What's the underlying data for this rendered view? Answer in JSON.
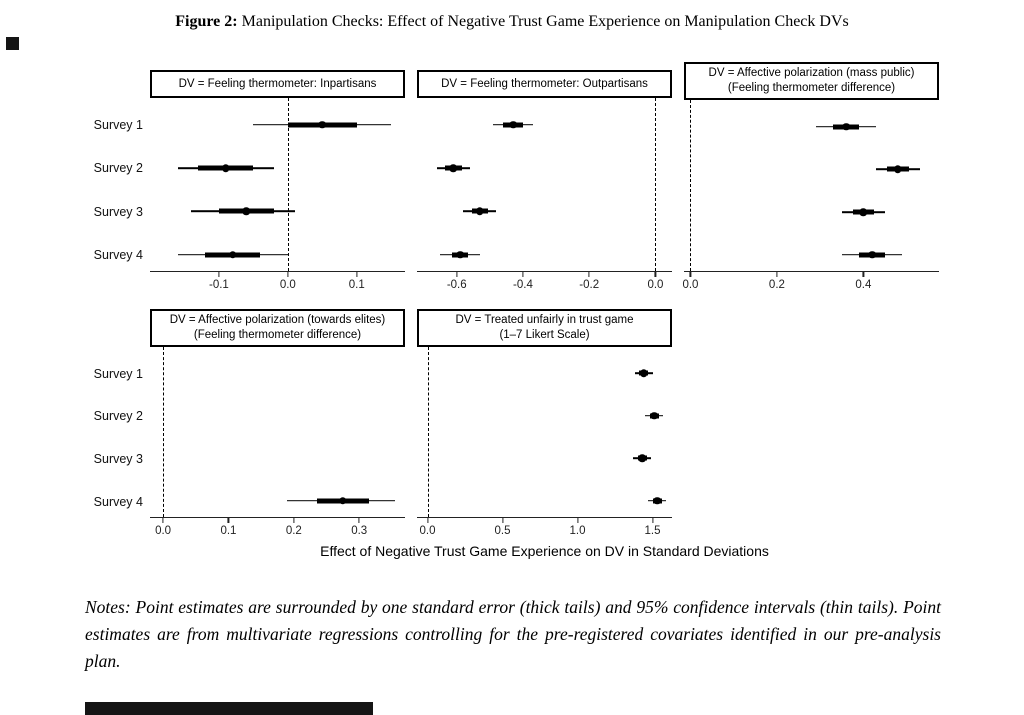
{
  "page": {
    "caption_prefix": "Figure 2:",
    "caption_text": " Manipulation Checks: Effect of Negative Trust Game Experience on Manipulation Check DVs",
    "notes": "Notes: Point estimates are surrounded by one standard error (thick tails) and 95% confidence intervals (thin tails). Point estimates are from multivariate regressions controlling for the pre-registered covariates identified in our pre-analysis plan."
  },
  "chart_data": {
    "type": "scatter",
    "subtype": "forest-plot",
    "title": "Figure 2: Manipulation Checks: Effect of Negative Trust Game Experience on Manipulation Check DVs",
    "xlabel": "Effect of Negative Trust Game Experience on DV in Standard Deviations",
    "y_categories": [
      "Survey 1",
      "Survey 2",
      "Survey 3",
      "Survey 4"
    ],
    "point_marker": "filled-circle",
    "error_bars": {
      "thick": "one standard error",
      "thin": "95% confidence interval"
    },
    "zero_reference_line": "dashed",
    "panels": [
      {
        "id": "ft-inpartisans",
        "title_lines": [
          "DV = Feeling thermometer: Inpartisans"
        ],
        "xlim": [
          -0.2,
          0.17
        ],
        "ticks": [
          -0.1,
          0.0,
          0.1
        ],
        "tick_labels": [
          "-0.1",
          "0.0",
          "0.1"
        ],
        "zero_line": 0.0,
        "estimates": [
          {
            "label": "Survey 1",
            "est": 0.05,
            "se": [
              0.0,
              0.1
            ],
            "ci": [
              -0.05,
              0.15
            ]
          },
          {
            "label": "Survey 2",
            "est": -0.09,
            "se": [
              -0.13,
              -0.05
            ],
            "ci": [
              -0.16,
              -0.02
            ]
          },
          {
            "label": "Survey 3",
            "est": -0.06,
            "se": [
              -0.1,
              -0.02
            ],
            "ci": [
              -0.14,
              0.01
            ]
          },
          {
            "label": "Survey 4",
            "est": -0.08,
            "se": [
              -0.12,
              -0.04
            ],
            "ci": [
              -0.16,
              0.0
            ]
          }
        ]
      },
      {
        "id": "ft-outpartisans",
        "title_lines": [
          "DV = Feeling thermometer: Outpartisans"
        ],
        "xlim": [
          -0.72,
          0.05
        ],
        "ticks": [
          -0.6,
          -0.4,
          -0.2,
          0.0
        ],
        "tick_labels": [
          "-0.6",
          "-0.4",
          "-0.2",
          "0.0"
        ],
        "zero_line": 0.0,
        "estimates": [
          {
            "label": "Survey 1",
            "est": -0.43,
            "se": [
              -0.46,
              -0.4
            ],
            "ci": [
              -0.49,
              -0.37
            ]
          },
          {
            "label": "Survey 2",
            "est": -0.61,
            "se": [
              -0.635,
              -0.585
            ],
            "ci": [
              -0.66,
              -0.56
            ]
          },
          {
            "label": "Survey 3",
            "est": -0.53,
            "se": [
              -0.555,
              -0.505
            ],
            "ci": [
              -0.58,
              -0.48
            ]
          },
          {
            "label": "Survey 4",
            "est": -0.59,
            "se": [
              -0.615,
              -0.565
            ],
            "ci": [
              -0.65,
              -0.53
            ]
          }
        ]
      },
      {
        "id": "affpol-mass-public",
        "title_lines": [
          "DV = Affective polarization (mass public)",
          "(Feeling thermometer difference)"
        ],
        "xlim": [
          -0.015,
          0.575
        ],
        "ticks": [
          0.0,
          0.2,
          0.4
        ],
        "tick_labels": [
          "0.0",
          "0.2",
          "0.4"
        ],
        "zero_line": 0.0,
        "estimates": [
          {
            "label": "Survey 1",
            "est": 0.36,
            "se": [
              0.33,
              0.39
            ],
            "ci": [
              0.29,
              0.43
            ]
          },
          {
            "label": "Survey 2",
            "est": 0.48,
            "se": [
              0.455,
              0.505
            ],
            "ci": [
              0.43,
              0.53
            ]
          },
          {
            "label": "Survey 3",
            "est": 0.4,
            "se": [
              0.375,
              0.425
            ],
            "ci": [
              0.35,
              0.45
            ]
          },
          {
            "label": "Survey 4",
            "est": 0.42,
            "se": [
              0.39,
              0.45
            ],
            "ci": [
              0.35,
              0.49
            ]
          }
        ]
      },
      {
        "id": "affpol-elites",
        "title_lines": [
          "DV = Affective polarization (towards elites)",
          "(Feeling thermometer difference)"
        ],
        "xlim": [
          -0.02,
          0.37
        ],
        "ticks": [
          0.0,
          0.1,
          0.2,
          0.3
        ],
        "tick_labels": [
          "0.0",
          "0.1",
          "0.2",
          "0.3"
        ],
        "zero_line": 0.0,
        "estimates": [
          {
            "label": "Survey 4",
            "est": 0.275,
            "se": [
              0.235,
              0.315
            ],
            "ci": [
              0.19,
              0.355
            ]
          }
        ]
      },
      {
        "id": "treated-unfairly",
        "title_lines": [
          "DV = Treated unfairly in trust game",
          "(1–7 Likert Scale)"
        ],
        "xlim": [
          -0.07,
          1.63
        ],
        "ticks": [
          0.0,
          0.5,
          1.0,
          1.5
        ],
        "tick_labels": [
          "0.0",
          "0.5",
          "1.0",
          "1.5"
        ],
        "zero_line": 0.0,
        "estimates": [
          {
            "label": "Survey 1",
            "est": 1.44,
            "se": [
              1.41,
              1.47
            ],
            "ci": [
              1.38,
              1.5
            ]
          },
          {
            "label": "Survey 2",
            "est": 1.51,
            "se": [
              1.48,
              1.54
            ],
            "ci": [
              1.45,
              1.57
            ]
          },
          {
            "label": "Survey 3",
            "est": 1.43,
            "se": [
              1.4,
              1.46
            ],
            "ci": [
              1.37,
              1.49
            ]
          },
          {
            "label": "Survey 4",
            "est": 1.53,
            "se": [
              1.5,
              1.56
            ],
            "ci": [
              1.47,
              1.59
            ]
          }
        ]
      }
    ]
  }
}
